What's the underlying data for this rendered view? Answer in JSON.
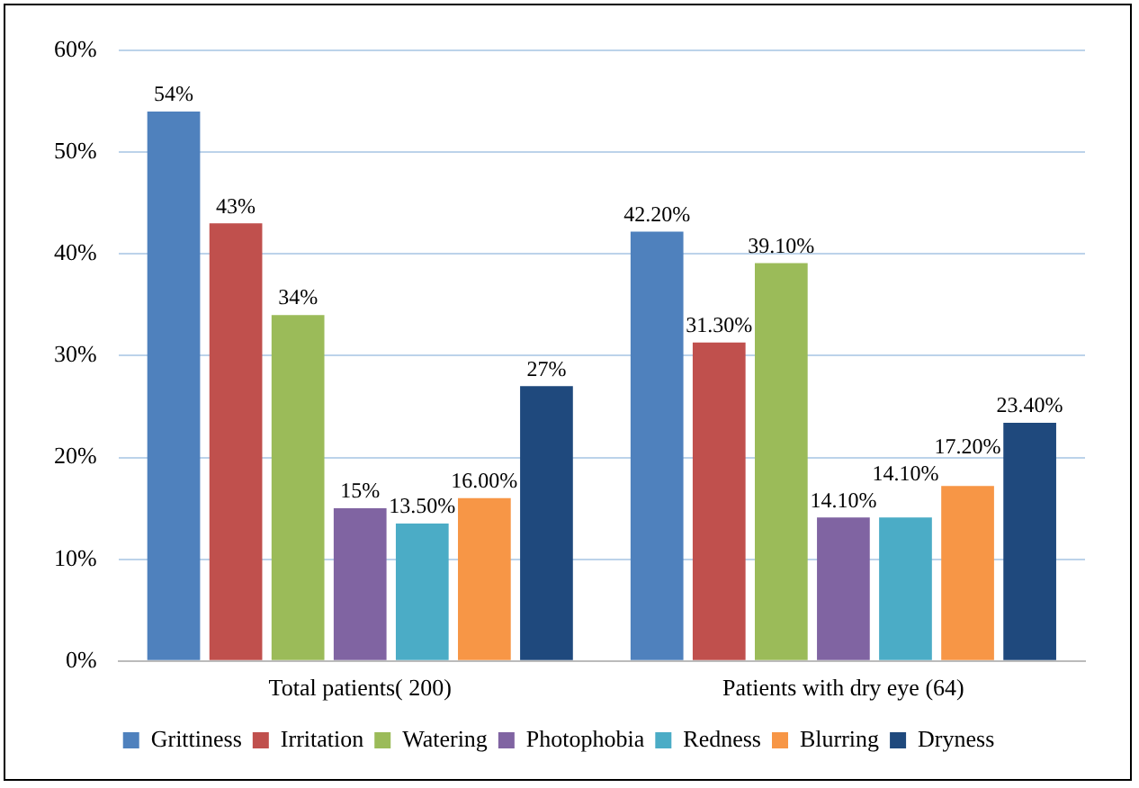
{
  "chart_data": {
    "type": "bar",
    "categories": [
      "Total patients( 200)",
      "Patients with dry eye (64)"
    ],
    "series": [
      {
        "name": "Grittiness",
        "color": "#4f81bd",
        "values": [
          54,
          42.2
        ],
        "value_labels": [
          "54%",
          "42.20%"
        ]
      },
      {
        "name": "Irritation",
        "color": "#c0504d",
        "values": [
          43,
          31.3
        ],
        "value_labels": [
          "43%",
          "31.30%"
        ]
      },
      {
        "name": "Watering",
        "color": "#9bbb59",
        "values": [
          34,
          39.1
        ],
        "value_labels": [
          "34%",
          "39.10%"
        ]
      },
      {
        "name": "Photophobia",
        "color": "#8064a2",
        "values": [
          15,
          14.1
        ],
        "value_labels": [
          "15%",
          "14.10%"
        ]
      },
      {
        "name": "Redness",
        "color": "#4bacc6",
        "values": [
          13.5,
          14.1
        ],
        "value_labels": [
          "13.50%",
          "14.10%"
        ]
      },
      {
        "name": "Blurring",
        "color": "#f79646",
        "values": [
          16,
          17.2
        ],
        "value_labels": [
          "16.00%",
          "17.20%"
        ]
      },
      {
        "name": "Dryness",
        "color": "#1f497d",
        "values": [
          27,
          23.4
        ],
        "value_labels": [
          "27%",
          "23.40%"
        ]
      }
    ],
    "ylim": [
      0,
      60
    ],
    "yticks": [
      {
        "value": 0,
        "label": "0%"
      },
      {
        "value": 10,
        "label": "10%"
      },
      {
        "value": 20,
        "label": "20%"
      },
      {
        "value": 30,
        "label": "30%"
      },
      {
        "value": 40,
        "label": "40%"
      },
      {
        "value": 50,
        "label": "50%"
      },
      {
        "value": 60,
        "label": "60%"
      }
    ],
    "grid": "y",
    "legend": "bottom"
  }
}
